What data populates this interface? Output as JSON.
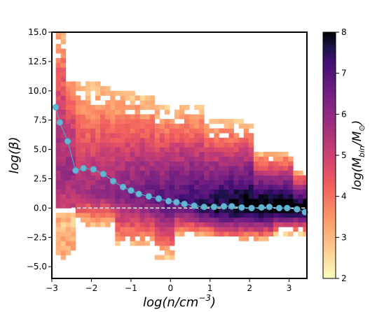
{
  "chart_data": {
    "type": "heatmap",
    "title": "",
    "xlabel": "log(n/cm",
    "xlabel_sup": "−3",
    "xlabel_close": ")",
    "ylabel": "log(β)",
    "xlim": [
      -3.0,
      3.45
    ],
    "ylim": [
      -6.0,
      15.0
    ],
    "xticks": [
      -3,
      -2,
      -1,
      0,
      1,
      2,
      3
    ],
    "xtick_labels": [
      "−3",
      "−2",
      "−1",
      "0",
      "1",
      "2",
      "3"
    ],
    "yticks": [
      -5.0,
      -2.5,
      0.0,
      2.5,
      5.0,
      7.5,
      10.0,
      12.5,
      15.0
    ],
    "ytick_labels": [
      "−5.0",
      "−2.5",
      "0.0",
      "2.5",
      "5.0",
      "7.5",
      "10.0",
      "12.5",
      "15.0"
    ],
    "grid": false,
    "legend": "none",
    "colormap": "magma_r",
    "colorbar": {
      "label_prefix": "log(M",
      "label_sub": "bin",
      "label_mid": "/M",
      "label_sub2": "⊙",
      "label_close": ")",
      "range": [
        2,
        8
      ],
      "ticks": [
        2,
        3,
        4,
        5,
        6,
        7,
        8
      ],
      "tick_labels": [
        "2",
        "3",
        "4",
        "5",
        "6",
        "7",
        "8"
      ]
    },
    "mean_line": {
      "color": "#4fa3c7",
      "marker_fill": "#66b6d2",
      "x": [
        -2.9,
        -2.8,
        -2.6,
        -2.4,
        -2.2,
        -1.95,
        -1.7,
        -1.45,
        -1.2,
        -1.0,
        -0.8,
        -0.55,
        -0.3,
        -0.05,
        0.15,
        0.35,
        0.6,
        0.85,
        1.1,
        1.35,
        1.55,
        1.8,
        2.05,
        2.3,
        2.5,
        2.75,
        2.95,
        3.2,
        3.4
      ],
      "y": [
        8.6,
        7.3,
        5.7,
        3.2,
        3.4,
        3.3,
        2.9,
        2.3,
        1.8,
        1.5,
        1.2,
        1.0,
        0.8,
        0.6,
        0.5,
        0.35,
        0.2,
        0.1,
        0.1,
        0.15,
        0.15,
        0.05,
        0.0,
        0.05,
        0.1,
        0.0,
        0.0,
        -0.1,
        -0.35
      ]
    },
    "reference_line": {
      "y": 0.0,
      "color": "#ffffff",
      "style": "dashed"
    }
  }
}
